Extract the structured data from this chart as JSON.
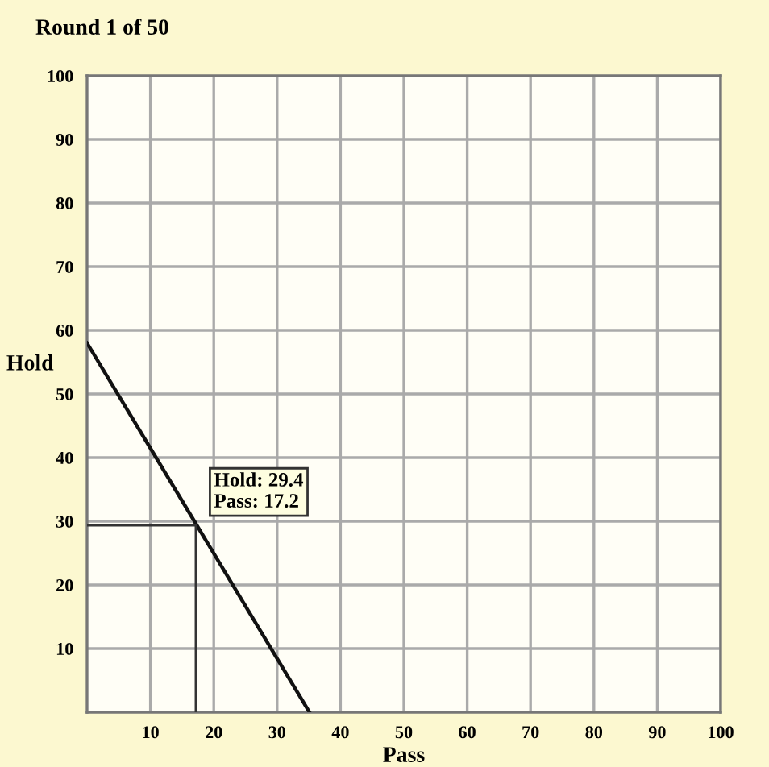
{
  "chart_data": {
    "type": "line",
    "title": "Round 1 of 50",
    "xlabel": "Pass",
    "ylabel": "Hold",
    "xlim": [
      0,
      100
    ],
    "ylim": [
      0,
      100
    ],
    "xticks": [
      10,
      20,
      30,
      40,
      50,
      60,
      70,
      80,
      90,
      100
    ],
    "yticks": [
      10,
      20,
      30,
      40,
      50,
      60,
      70,
      80,
      90,
      100
    ],
    "grid": true,
    "marker": "none",
    "line_style": "solid",
    "series": [
      {
        "x": [
          0,
          35.1
        ],
        "values": [
          58,
          0
        ],
        "color": "#111111"
      },
      {
        "x": [
          0,
          17.2,
          17.2
        ],
        "values": [
          29.4,
          29.4,
          0
        ],
        "color": "#333333"
      }
    ],
    "annotations": [
      {
        "text": "Hold: 29.4\nPass: 17.2",
        "x": 17.2,
        "y": 29.4
      }
    ]
  }
}
